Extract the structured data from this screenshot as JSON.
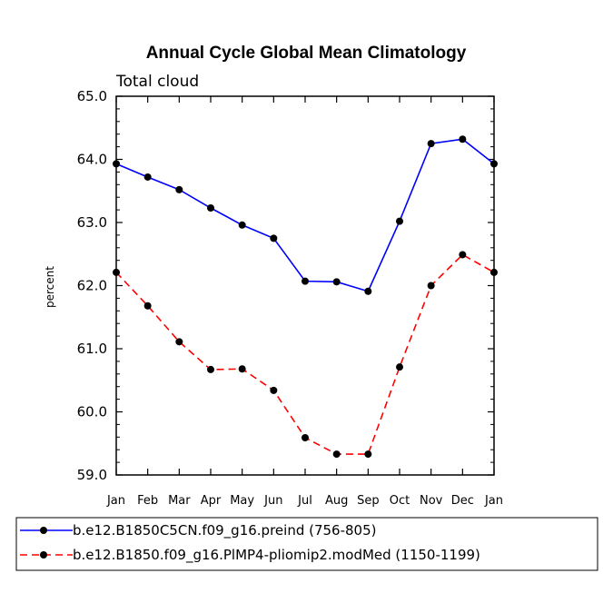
{
  "chart_data": {
    "type": "line",
    "title": "Annual Cycle Global Mean Climatology",
    "subtitle": "Total cloud",
    "xlabel": "",
    "ylabel": "percent",
    "ylim": [
      59.0,
      65.0
    ],
    "yticks": [
      "59.0",
      "60.0",
      "61.0",
      "62.0",
      "63.0",
      "64.0",
      "65.0"
    ],
    "categories": [
      "Jan",
      "Feb",
      "Mar",
      "Apr",
      "May",
      "Jun",
      "Jul",
      "Aug",
      "Sep",
      "Oct",
      "Nov",
      "Dec",
      "Jan"
    ],
    "series": [
      {
        "name": "b.e12.B1850C5CN.f09_g16.preind (756-805)",
        "color": "#0000ff",
        "style": "solid",
        "values": [
          63.93,
          63.72,
          63.52,
          63.23,
          62.96,
          62.75,
          62.07,
          62.06,
          61.91,
          63.02,
          64.25,
          64.32,
          63.93
        ]
      },
      {
        "name": "b.e12.B1850.f09_g16.PlMP4-pliomip2.modMed (1150-1199)",
        "color": "#ff0000",
        "style": "dashed",
        "values": [
          62.21,
          61.68,
          61.11,
          60.67,
          60.68,
          60.34,
          59.59,
          59.33,
          59.33,
          60.71,
          62.0,
          62.49,
          62.21
        ]
      }
    ],
    "legend_position": "bottom"
  }
}
